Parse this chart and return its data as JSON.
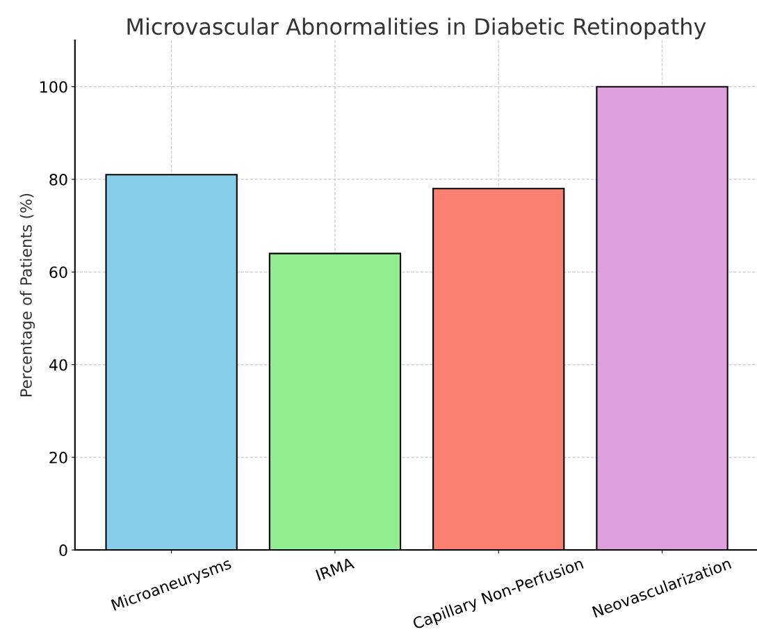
{
  "chart_data": {
    "type": "bar",
    "title": "Microvascular Abnormalities in Diabetic Retinopathy",
    "ylabel": "Percentage of Patients (%)",
    "categories": [
      "Microaneurysms",
      "IRMA",
      "Capillary Non-Perfusion",
      "Neovascularization"
    ],
    "values": [
      81,
      64,
      78,
      100
    ],
    "colors": [
      "#87ceeb",
      "#90ee90",
      "#fa8072",
      "#dda0dd"
    ],
    "ylim": [
      0,
      110
    ],
    "yticks": [
      0,
      20,
      40,
      60,
      80,
      100
    ],
    "grid": true
  }
}
